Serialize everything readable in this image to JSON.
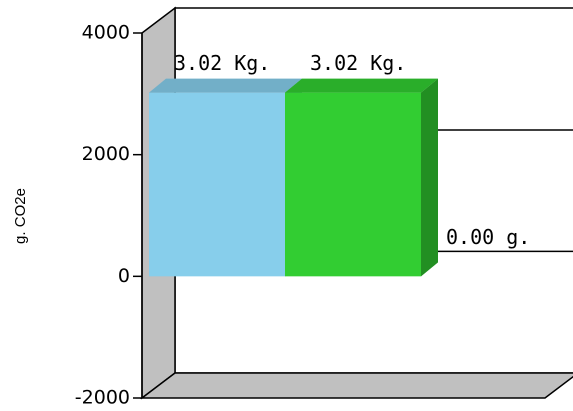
{
  "chart_data": {
    "type": "bar",
    "three_d": true,
    "ylabel": "g. CO2e",
    "ylim": [
      -2000,
      4000
    ],
    "y_ticks": [
      {
        "value": 4000,
        "label": "4000"
      },
      {
        "value": 2000,
        "label": "2000"
      },
      {
        "value": 0,
        "label": "0"
      },
      {
        "value": -2000,
        "label": "-2000"
      }
    ],
    "bars": [
      {
        "value": 3020,
        "label": "3.02 Kg.",
        "color": "#87ceeb"
      },
      {
        "value": 3020,
        "label": "3.02 Kg.",
        "color": "#32cd32"
      },
      {
        "value": 0,
        "label": "0.00 g.",
        "color": "#32cd32"
      }
    ],
    "colors": {
      "wall": "#ffffff",
      "side_wall": "#c0c0c0",
      "floor": "#c0c0c0",
      "edge": "#000000"
    }
  }
}
